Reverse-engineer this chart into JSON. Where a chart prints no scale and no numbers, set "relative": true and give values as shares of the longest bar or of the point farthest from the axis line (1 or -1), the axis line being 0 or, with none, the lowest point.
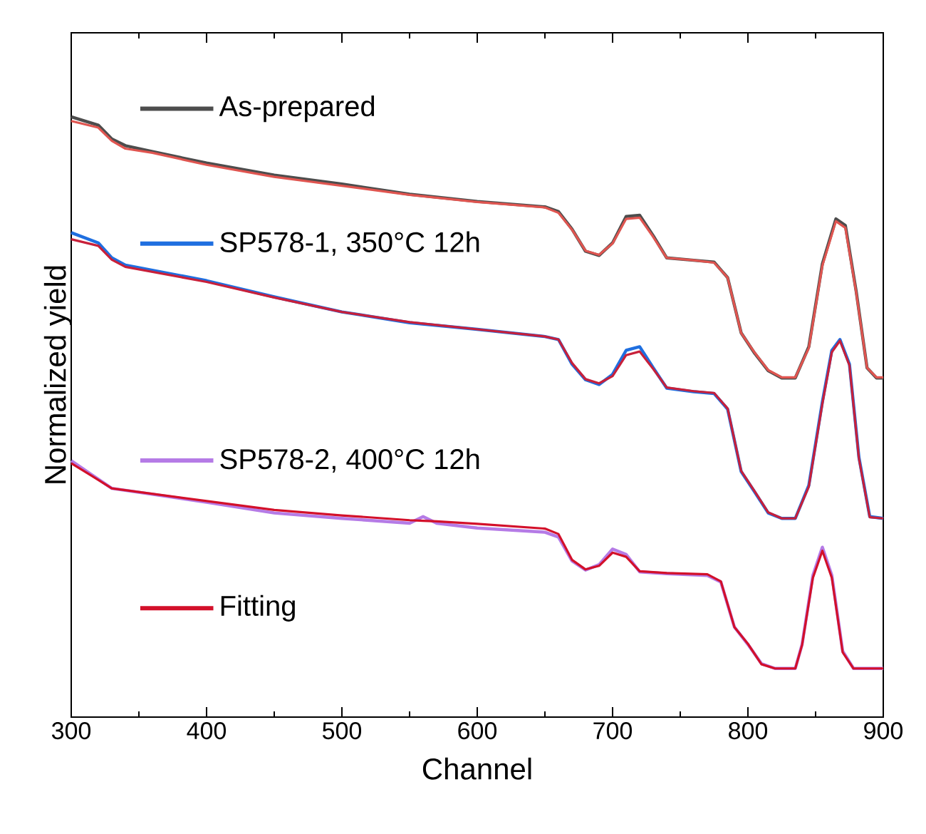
{
  "chart_data": {
    "type": "line",
    "xlabel": "Channel",
    "ylabel": "Normalized yield",
    "relative": true,
    "xlim": [
      300,
      900
    ],
    "xticks": [
      300,
      400,
      500,
      600,
      700,
      800,
      900
    ],
    "tick_labels": "x",
    "legend": "left",
    "series": [
      {
        "name": "As-prepared",
        "color": "#4d4d4d",
        "x": [
          300,
          320,
          330,
          340,
          360,
          400,
          450,
          500,
          550,
          600,
          650,
          660,
          670,
          680,
          690,
          700,
          710,
          720,
          730,
          740,
          760,
          775,
          785,
          795,
          805,
          815,
          825,
          835,
          845,
          855,
          865,
          872,
          880,
          888,
          895,
          900
        ],
        "values": [
          1.0,
          0.986,
          0.963,
          0.952,
          0.942,
          0.923,
          0.903,
          0.888,
          0.871,
          0.859,
          0.85,
          0.842,
          0.813,
          0.776,
          0.769,
          0.79,
          0.834,
          0.836,
          0.802,
          0.765,
          0.761,
          0.758,
          0.732,
          0.64,
          0.606,
          0.577,
          0.565,
          0.565,
          0.617,
          0.755,
          0.83,
          0.819,
          0.709,
          0.582,
          0.565,
          0.565
        ]
      },
      {
        "color": "#e05550",
        "x": [
          300,
          320,
          330,
          340,
          360,
          400,
          450,
          500,
          550,
          600,
          650,
          660,
          670,
          680,
          690,
          700,
          710,
          720,
          730,
          740,
          760,
          775,
          785,
          795,
          805,
          815,
          825,
          835,
          845,
          855,
          865,
          872,
          880,
          888,
          895,
          900
        ],
        "values": [
          0.993,
          0.982,
          0.96,
          0.947,
          0.94,
          0.92,
          0.9,
          0.885,
          0.87,
          0.858,
          0.849,
          0.84,
          0.812,
          0.777,
          0.77,
          0.789,
          0.83,
          0.832,
          0.8,
          0.765,
          0.761,
          0.757,
          0.732,
          0.64,
          0.607,
          0.578,
          0.566,
          0.566,
          0.615,
          0.752,
          0.826,
          0.815,
          0.707,
          0.582,
          0.566,
          0.566
        ]
      },
      {
        "name": "SP578-1, 350°C 12h",
        "color": "#1f6fe0",
        "x": [
          300,
          320,
          330,
          340,
          400,
          450,
          500,
          550,
          600,
          650,
          660,
          670,
          680,
          690,
          700,
          710,
          720,
          730,
          740,
          760,
          775,
          785,
          795,
          805,
          815,
          825,
          835,
          845,
          855,
          862,
          868,
          875,
          882,
          890,
          900
        ],
        "values": [
          0.807,
          0.79,
          0.765,
          0.753,
          0.727,
          0.7,
          0.675,
          0.657,
          0.646,
          0.634,
          0.629,
          0.588,
          0.562,
          0.554,
          0.571,
          0.611,
          0.617,
          0.582,
          0.548,
          0.542,
          0.539,
          0.513,
          0.409,
          0.375,
          0.34,
          0.331,
          0.331,
          0.386,
          0.525,
          0.611,
          0.629,
          0.588,
          0.433,
          0.334,
          0.331
        ]
      },
      {
        "color": "#c8203a",
        "x": [
          300,
          320,
          330,
          340,
          400,
          450,
          500,
          550,
          600,
          650,
          660,
          670,
          680,
          690,
          700,
          710,
          720,
          730,
          740,
          760,
          775,
          785,
          795,
          805,
          815,
          825,
          835,
          845,
          855,
          862,
          868,
          875,
          882,
          890,
          900
        ],
        "values": [
          0.796,
          0.785,
          0.762,
          0.75,
          0.725,
          0.699,
          0.675,
          0.658,
          0.646,
          0.634,
          0.629,
          0.59,
          0.563,
          0.556,
          0.568,
          0.603,
          0.609,
          0.58,
          0.549,
          0.543,
          0.54,
          0.514,
          0.41,
          0.376,
          0.341,
          0.331,
          0.331,
          0.384,
          0.522,
          0.608,
          0.627,
          0.586,
          0.431,
          0.333,
          0.331
        ]
      },
      {
        "name": "SP578-2, 400°C 12h",
        "color": "#b57be6",
        "x": [
          300,
          315,
          330,
          400,
          450,
          500,
          550,
          560,
          570,
          600,
          650,
          660,
          670,
          680,
          690,
          700,
          710,
          720,
          740,
          770,
          780,
          790,
          800,
          810,
          820,
          835,
          840,
          848,
          855,
          862,
          870,
          878,
          900
        ],
        "values": [
          0.427,
          0.404,
          0.381,
          0.358,
          0.34,
          0.331,
          0.323,
          0.334,
          0.323,
          0.315,
          0.308,
          0.3,
          0.26,
          0.245,
          0.254,
          0.28,
          0.271,
          0.242,
          0.239,
          0.236,
          0.225,
          0.15,
          0.121,
          0.089,
          0.081,
          0.081,
          0.121,
          0.236,
          0.283,
          0.236,
          0.11,
          0.081,
          0.081
        ]
      },
      {
        "name": "Fitting",
        "color": "#d3102a",
        "x": [
          300,
          315,
          330,
          400,
          450,
          500,
          550,
          560,
          570,
          600,
          650,
          660,
          670,
          680,
          690,
          700,
          710,
          720,
          740,
          770,
          780,
          790,
          800,
          810,
          820,
          835,
          840,
          848,
          855,
          862,
          870,
          878,
          900
        ],
        "values": [
          0.423,
          0.402,
          0.381,
          0.36,
          0.345,
          0.336,
          0.328,
          0.327,
          0.326,
          0.322,
          0.314,
          0.305,
          0.262,
          0.246,
          0.252,
          0.274,
          0.267,
          0.243,
          0.24,
          0.238,
          0.226,
          0.15,
          0.122,
          0.088,
          0.081,
          0.081,
          0.12,
          0.232,
          0.277,
          0.232,
          0.108,
          0.081,
          0.081
        ]
      }
    ]
  }
}
